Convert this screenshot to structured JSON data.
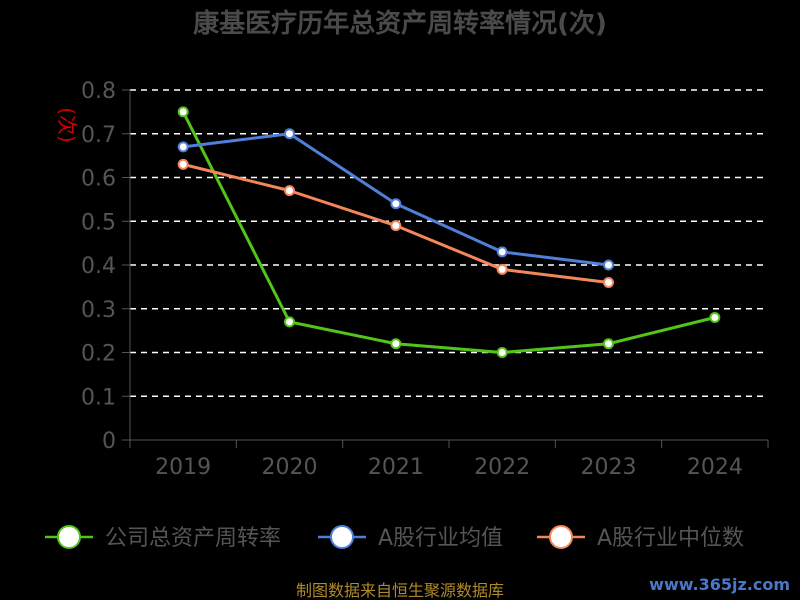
{
  "chart_data": {
    "type": "line",
    "title": "康基医疗历年总资产周转率情况(次)",
    "ylabel_unit": "(次)",
    "categories": [
      "2019",
      "2020",
      "2021",
      "2022",
      "2023",
      "2024"
    ],
    "ylim": [
      0,
      0.8
    ],
    "yticks": [
      "0",
      "0.1",
      "0.2",
      "0.3",
      "0.4",
      "0.5",
      "0.6",
      "0.7",
      "0.8"
    ],
    "grid": true,
    "legend_position": "bottom",
    "series": [
      {
        "name": "公司总资产周转率",
        "color": "#52c41a",
        "values": [
          0.75,
          0.27,
          0.22,
          0.2,
          0.22,
          0.28
        ]
      },
      {
        "name": "A股行业均值",
        "color": "#4f7fd8",
        "values": [
          0.67,
          0.7,
          0.54,
          0.43,
          0.4,
          null
        ]
      },
      {
        "name": "A股行业中位数",
        "color": "#f4875a",
        "values": [
          0.63,
          0.57,
          0.49,
          0.39,
          0.36,
          null
        ]
      }
    ]
  },
  "footer": {
    "source": "制图数据来自恒生聚源数据库",
    "watermark": "www.365jz.com"
  }
}
